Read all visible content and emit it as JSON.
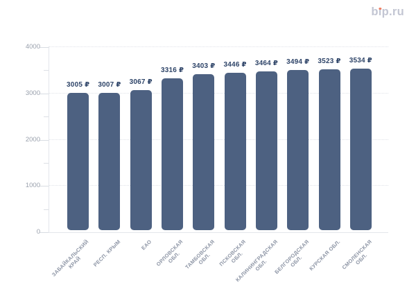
{
  "logo": {
    "text": "bip.ru",
    "parts": {
      "b": "b",
      "i_dotless": "ı",
      "rest": "p.ru"
    },
    "color": "#c3c6d3",
    "dot_color": "#ee7e62"
  },
  "chart_data": {
    "type": "bar",
    "title": "",
    "categories": [
      "ЗАБАЙКАЛЬСКИЙ КРАЙ",
      "РЕСП. КРЫМ",
      "ЕАО",
      "ОРЛОВСКАЯ ОБЛ.",
      "ТАМБОВСКАЯ ОБЛ.",
      "ПСКОВСКАЯ ОБЛ.",
      "КАЛИНИНГРАДСКАЯ ОБЛ.",
      "БЕЛГОРОДСКАЯ ОБЛ.",
      "КУРСКАЯ ОБЛ.",
      "СМОЛЕНСКАЯ ОБЛ."
    ],
    "category_label_lines": [
      [
        "ЗАБАЙКАЛЬСКИЙ",
        "КРАЙ"
      ],
      [
        "РЕСП. КРЫМ"
      ],
      [
        "ЕАО"
      ],
      [
        "ОРЛОВСКАЯ",
        "ОБЛ."
      ],
      [
        "ТАМБОВСКАЯ",
        "ОБЛ."
      ],
      [
        "ПСКОВСКАЯ",
        "ОБЛ."
      ],
      [
        "КАЛИНИНГРАДСКАЯ",
        "ОБЛ."
      ],
      [
        "БЕЛГОРОДСКАЯ",
        "ОБЛ."
      ],
      [
        "КУРСКАЯ ОБЛ."
      ],
      [
        "СМОЛЕНСКАЯ",
        "ОБЛ."
      ]
    ],
    "values": [
      3005,
      3007,
      3067,
      3316,
      3403,
      3446,
      3464,
      3494,
      3523,
      3534
    ],
    "value_labels": [
      "3005 ₽",
      "3007 ₽",
      "3067 ₽",
      "3316 ₽",
      "3403 ₽",
      "3446 ₽",
      "3464 ₽",
      "3494 ₽",
      "3523 ₽",
      "3534 ₽"
    ],
    "ylim": [
      0,
      4000
    ],
    "yticks": [
      0,
      1000,
      2000,
      3000,
      4000
    ],
    "ytick_labels": [
      "0",
      "1000",
      "2000",
      "3000",
      "4000"
    ],
    "minor_ytick_step": 500,
    "grid": "horizontal-dotted",
    "legend": "none",
    "bar_color": "#4d6181",
    "value_label_color": "#2e4468",
    "axis_label_color": "#99a0ac",
    "category_label_color": "#8d95a5"
  }
}
